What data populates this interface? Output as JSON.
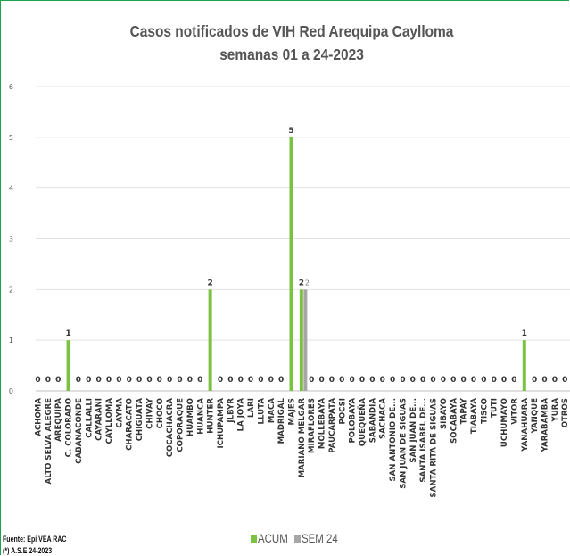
{
  "chart_data": {
    "type": "bar",
    "title": [
      "Casos notificados de VIH Red Arequipa Caylloma",
      "semanas 01 a 24-2023"
    ],
    "ylim": [
      0,
      6
    ],
    "yticks": [
      0,
      1,
      2,
      3,
      4,
      5,
      6
    ],
    "categories": [
      "ACHOMA",
      "ALTO SELVA ALEGRE",
      "AREQUIPA",
      "C. COLORADO",
      "CABANACONDE",
      "CALLALLI",
      "CAYARANI",
      "CAYLLOMA",
      "CAYMA",
      "CHARACATO",
      "CHIGUATA",
      "CHIVAY",
      "CHOCO",
      "COCACHACRA",
      "COPORAQUE",
      "HUAMBO",
      "HUANCA",
      "HUNTER",
      "ICHUPAMPA",
      "JLBYR",
      "LA JOYA",
      "LARI",
      "LLUTA",
      "MACA",
      "MADRIGAL",
      "MAJES",
      "MARIANO MELGAR",
      "MIRAFLORES",
      "MOLLEBAYA",
      "PAUCARPATA",
      "POCSI",
      "POLOBAYA",
      "QUEQUEÑA",
      "SABANDIA",
      "SACHACA",
      "SAN ANTONIO DE...",
      "SAN JUAN DE SIGUAS",
      "SAN JUAN DE...",
      "SANTA ISABEL DE...",
      "SANTA RITA DE SIGUAS",
      "SIBAYO",
      "SOCABAYA",
      "TAPAY",
      "TIABAYA",
      "TISCO",
      "TUTI",
      "UCHUMAYO",
      "VITOR",
      "YANAHUARA",
      "YANQUE",
      "YARABAMBA",
      "YURA",
      "OTROS"
    ],
    "series": [
      {
        "name": "ACUM",
        "color": "#7cc242",
        "values": [
          0,
          0,
          0,
          1,
          0,
          0,
          0,
          0,
          0,
          0,
          0,
          0,
          0,
          0,
          0,
          0,
          0,
          2,
          0,
          0,
          0,
          0,
          0,
          0,
          0,
          5,
          2,
          0,
          0,
          0,
          0,
          0,
          0,
          0,
          0,
          0,
          0,
          0,
          0,
          0,
          0,
          0,
          0,
          0,
          0,
          0,
          0,
          0,
          1,
          0,
          0,
          0,
          0
        ]
      },
      {
        "name": "SEM 24",
        "color": "#a6a6a6",
        "values": [
          null,
          null,
          null,
          null,
          null,
          null,
          null,
          null,
          null,
          null,
          null,
          null,
          null,
          null,
          null,
          null,
          null,
          null,
          null,
          null,
          null,
          null,
          null,
          null,
          null,
          null,
          2,
          null,
          null,
          null,
          null,
          null,
          null,
          null,
          null,
          null,
          null,
          null,
          null,
          null,
          null,
          null,
          null,
          null,
          null,
          null,
          null,
          null,
          null,
          null,
          null,
          null,
          null
        ]
      }
    ],
    "legend": {
      "items": [
        "ACUM",
        "SEM 24"
      ],
      "position": "bottom"
    },
    "grid": true
  },
  "footer": {
    "source": "Fuente: Epi VEA RAC",
    "credit": "(*) A.S.E 24-2023"
  }
}
